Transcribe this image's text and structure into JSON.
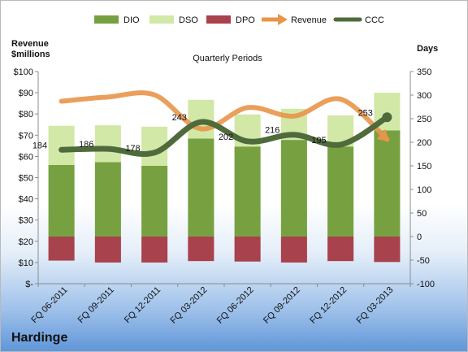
{
  "chart_data": {
    "type": "bar",
    "company": "Hardinge",
    "title": "Quarterly Periods",
    "ylabel_left": "Revenue $millions",
    "ylabel_right": "Days",
    "categories": [
      "FQ 06-2011",
      "FQ 09-2011",
      "FQ 12-2011",
      "FQ 03-2012",
      "FQ 06-2012",
      "FQ 09-2012",
      "FQ 12-2012",
      "FQ 03-2013"
    ],
    "left_axis": {
      "range": [
        0,
        100
      ],
      "ticks": [
        "$-",
        "$10",
        "$20",
        "$30",
        "$40",
        "$50",
        "$60",
        "$70",
        "$80",
        "$90",
        "$100"
      ]
    },
    "right_axis": {
      "range": [
        -100,
        350
      ],
      "ticks": [
        "-100",
        "-50",
        "0",
        "50",
        "100",
        "150",
        "200",
        "250",
        "300",
        "350"
      ]
    },
    "legend": [
      "DIO",
      "DSO",
      "DPO",
      "Revenue",
      "CCC"
    ],
    "legend_position": "top",
    "series": [
      {
        "name": "DIO",
        "axis": "right",
        "kind": "bar",
        "color": "#77a141",
        "values": [
          152,
          158,
          150,
          208,
          191,
          205,
          191,
          225
        ]
      },
      {
        "name": "DSO",
        "axis": "right",
        "kind": "bar",
        "color": "#d2e8a6",
        "values": [
          83,
          78,
          83,
          82,
          68,
          66,
          66,
          80
        ]
      },
      {
        "name": "DPO",
        "axis": "right",
        "kind": "bar",
        "color": "#a8424d",
        "values": [
          -51,
          -55,
          -55,
          -52,
          -53,
          -55,
          -52,
          -54
        ]
      },
      {
        "name": "Revenue",
        "axis": "left",
        "kind": "line",
        "color": "#e8954a",
        "values": [
          86,
          88,
          89,
          73,
          83,
          79,
          87,
          68
        ]
      },
      {
        "name": "CCC",
        "axis": "right",
        "kind": "line",
        "color": "#4f6b3c",
        "values": [
          184,
          186,
          178,
          243,
          202,
          216,
          195,
          253
        ]
      }
    ],
    "ccc_labels": [
      "184",
      "186",
      "178",
      "243",
      "202",
      "216",
      "195",
      "253"
    ],
    "grid": false
  }
}
